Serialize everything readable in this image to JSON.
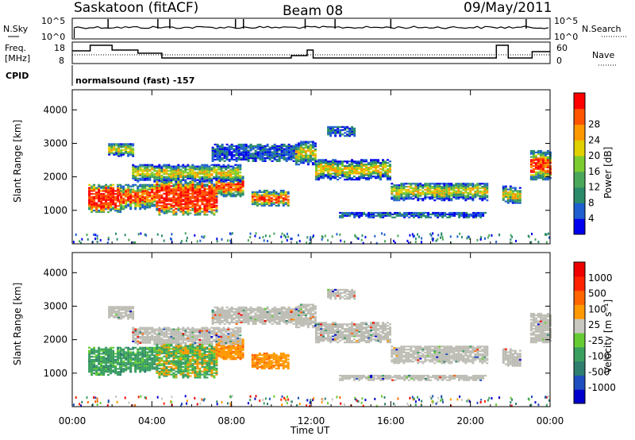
{
  "header": {
    "station": "Saskatoon (fitACF)",
    "beam": "Beam 08",
    "date": "09/May/2011"
  },
  "top_panel": {
    "left_label": "N.Sky",
    "right_label": "N.Search",
    "left_ticks": [
      "10^5",
      "10^0"
    ],
    "right_ticks": [
      "10^5",
      "10^0"
    ]
  },
  "freq_panel": {
    "left_label_1": "Freq.",
    "left_label_2": "[MHz]",
    "left_ticks": [
      "18",
      "8"
    ],
    "right_ticks": [
      "60",
      "0"
    ],
    "right_label": "Nave"
  },
  "cpid": {
    "label": "CPID",
    "value": "normalsound (fast) -157"
  },
  "colors": {
    "power_scale": [
      "#0000ee",
      "#1f5fd0",
      "#2a8a6a",
      "#4aa85a",
      "#7ccc30",
      "#e0d000",
      "#ff9900",
      "#ff5500",
      "#ff0000"
    ],
    "velocity_scale": [
      "#0000cc",
      "#1f4fbf",
      "#2f7f6f",
      "#3aa060",
      "#66cc33",
      "#c8c8c0",
      "#ff9900",
      "#ff6600",
      "#ff2200",
      "#ee0000"
    ],
    "ground_scatter": "#bdbdb5"
  },
  "chart_data": [
    {
      "type": "heatmap",
      "title": "Power",
      "xlabel": "",
      "ylabel": "Slant Range [km]",
      "x_ticks": [
        "00:00",
        "04:00",
        "08:00",
        "12:00",
        "16:00",
        "20:00",
        "00:00"
      ],
      "y_ticks": [
        "1000",
        "2000",
        "3000",
        "4000"
      ],
      "ylim": [
        0,
        4600
      ],
      "xlim_hours": [
        0,
        24
      ],
      "colorbar_label": "Power [dB]",
      "colorbar_ticks": [
        "4",
        "8",
        "12",
        "16",
        "20",
        "24",
        "28"
      ],
      "colorbar_range": [
        0,
        32
      ]
    },
    {
      "type": "heatmap",
      "title": "Velocity",
      "xlabel": "Time UT",
      "ylabel": "Slant Range [km]",
      "x_ticks": [
        "00:00",
        "04:00",
        "08:00",
        "12:00",
        "16:00",
        "20:00",
        "00:00"
      ],
      "y_ticks": [
        "1000",
        "2000",
        "3000",
        "4000"
      ],
      "ylim": [
        0,
        4600
      ],
      "xlim_hours": [
        0,
        24
      ],
      "colorbar_label": "Velocity [m s⁻¹]",
      "colorbar_ticks": [
        "1000",
        "500",
        "100",
        "25",
        "-25",
        "-100",
        "-500",
        "-1000"
      ]
    }
  ]
}
